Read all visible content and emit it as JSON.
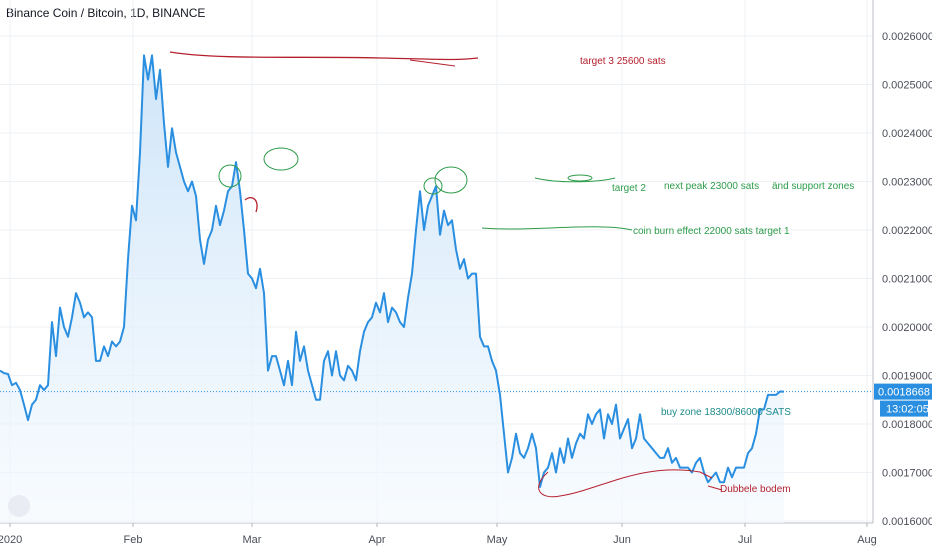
{
  "header": {
    "title": "Binance Coin / Bitcoin, 1D, BINANCE"
  },
  "price_badge": {
    "price": "0.0018668",
    "countdown": "13:02:05"
  },
  "chart_data": {
    "type": "area",
    "series": [
      {
        "values": [
          0.00191,
          0.001905,
          0.001903,
          0.00188,
          0.001885,
          0.00187,
          0.00184,
          0.001808,
          0.00184,
          0.00185,
          0.00188,
          0.00187,
          0.00188,
          0.00201,
          0.00194,
          0.00204,
          0.002,
          0.00198,
          0.00202,
          0.00207,
          0.00205,
          0.00202,
          0.00203,
          0.00202,
          0.00193,
          0.00193,
          0.00196,
          0.00194,
          0.00197,
          0.00196,
          0.00197,
          0.002,
          0.00214,
          0.00225,
          0.00222,
          0.00236,
          0.00256,
          0.00251,
          0.00256,
          0.00247,
          0.00253,
          0.00242,
          0.00233,
          0.00241,
          0.00236,
          0.00233,
          0.0023,
          0.00228,
          0.0023,
          0.00227,
          0.00218,
          0.00213,
          0.00218,
          0.0022,
          0.00225,
          0.00221,
          0.00224,
          0.00228,
          0.00229,
          0.00234,
          0.00228,
          0.0022,
          0.00211,
          0.0021,
          0.00208,
          0.00212,
          0.00207,
          0.00191,
          0.00194,
          0.00194,
          0.00191,
          0.00188,
          0.00193,
          0.00188,
          0.00199,
          0.00193,
          0.00196,
          0.00191,
          0.00188,
          0.00185,
          0.00185,
          0.00193,
          0.00195,
          0.0019,
          0.00195,
          0.0019,
          0.00189,
          0.00192,
          0.00191,
          0.00189,
          0.00195,
          0.00199,
          0.00201,
          0.00202,
          0.00205,
          0.00203,
          0.00207,
          0.00201,
          0.00204,
          0.00203,
          0.00201,
          0.002,
          0.00206,
          0.00211,
          0.0022,
          0.00228,
          0.0022,
          0.00225,
          0.00227,
          0.00229,
          0.00219,
          0.00224,
          0.00221,
          0.00222,
          0.00216,
          0.00212,
          0.00214,
          0.0021,
          0.00211,
          0.00211,
          0.00198,
          0.00196,
          0.00196,
          0.00193,
          0.00191,
          0.00186,
          0.00178,
          0.0017,
          0.00173,
          0.00178,
          0.00174,
          0.00173,
          0.00175,
          0.00178,
          0.00175,
          0.00167,
          0.0017,
          0.00171,
          0.00174,
          0.0017,
          0.00175,
          0.00172,
          0.00177,
          0.00173,
          0.00176,
          0.00178,
          0.00177,
          0.00182,
          0.0018,
          0.00182,
          0.00183,
          0.00177,
          0.00182,
          0.0018,
          0.00184,
          0.00177,
          0.00179,
          0.00181,
          0.00175,
          0.00177,
          0.00182,
          0.00177,
          0.00176,
          0.00175,
          0.00174,
          0.00173,
          0.00173,
          0.00175,
          0.00172,
          0.00173,
          0.00171,
          0.00171,
          0.00171,
          0.0017,
          0.00172,
          0.00173,
          0.0017,
          0.00168,
          0.00169,
          0.0017,
          0.00168,
          0.00168,
          0.00171,
          0.00169,
          0.00171,
          0.00171,
          0.00171,
          0.00174,
          0.00175,
          0.00178,
          0.00183,
          0.00183,
          0.00186,
          0.00186,
          0.00186,
          0.001867,
          0.0018668
        ]
      }
    ],
    "x_labels": [
      "2020",
      "Feb",
      "Mar",
      "Apr",
      "May",
      "Jun",
      "Jul",
      "Aug"
    ],
    "y_ticks": [
      "0.0016000",
      "0.0017000",
      "0.0018000",
      "0.0019000",
      "0.0020000",
      "0.0021000",
      "0.0022000",
      "0.0023000",
      "0.0024000",
      "0.0025000",
      "0.0026000"
    ],
    "ylim": [
      0.00159,
      0.00265
    ],
    "grid": true,
    "colors": {
      "line": "#2a8fe0",
      "fill_top": "#c9e2f8",
      "fill_bottom": "#f3f9fe",
      "grid": "#eef1f6",
      "badge": "#2a8fe0",
      "annotation_red": "#b5202d",
      "annotation_green": "#2e9c4a",
      "annotation_teal": "#1d8a8a"
    },
    "annotations": [
      {
        "text": "target 3 25600 sats",
        "color": "red"
      },
      {
        "text": "target 2",
        "color": "green"
      },
      {
        "text": "next peak 23000 sats",
        "color": "green"
      },
      {
        "text": "änd support zones",
        "color": "green"
      },
      {
        "text": "coin burn effect 22000 sats target 1",
        "color": "green"
      },
      {
        "text": "buy zone 18300/86000 SATS",
        "color": "teal"
      },
      {
        "text": "Dubbele bodem",
        "color": "red"
      }
    ]
  }
}
